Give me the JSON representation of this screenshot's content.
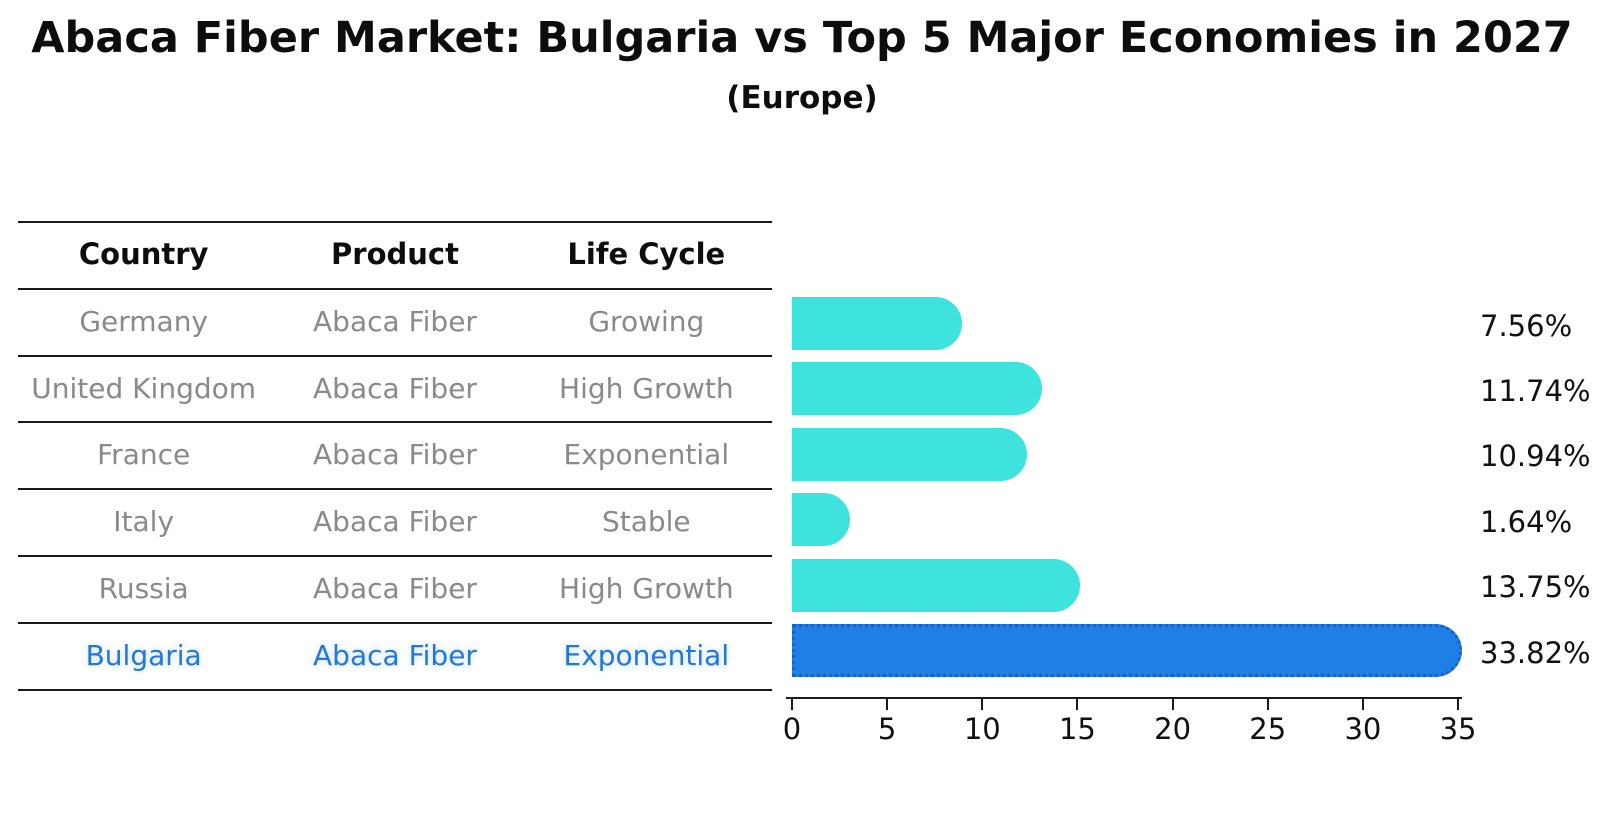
{
  "title": "Abaca Fiber Market: Bulgaria vs Top 5 Major Economies in 2027",
  "subtitle": "(Europe)",
  "table": {
    "headers": [
      "Country",
      "Product",
      "Life Cycle"
    ],
    "rows": [
      {
        "country": "Germany",
        "product": "Abaca Fiber",
        "life_cycle": "Growing",
        "highlight": false
      },
      {
        "country": "United Kingdom",
        "product": "Abaca Fiber",
        "life_cycle": "High Growth",
        "highlight": false
      },
      {
        "country": "France",
        "product": "Abaca Fiber",
        "life_cycle": "Exponential",
        "highlight": false
      },
      {
        "country": "Italy",
        "product": "Abaca Fiber",
        "life_cycle": "Stable",
        "highlight": false
      },
      {
        "country": "Russia",
        "product": "Abaca Fiber",
        "life_cycle": "High Growth",
        "highlight": false
      },
      {
        "country": "Bulgaria",
        "product": "Abaca Fiber",
        "life_cycle": "Exponential",
        "highlight": true
      }
    ]
  },
  "chart_data": {
    "type": "bar",
    "orientation": "horizontal",
    "categories": [
      "Germany",
      "United Kingdom",
      "France",
      "Italy",
      "Russia",
      "Bulgaria"
    ],
    "values": [
      7.56,
      11.74,
      10.94,
      1.64,
      13.75,
      33.82
    ],
    "labels": [
      "7.56%",
      "11.74%",
      "10.94%",
      "1.64%",
      "13.75%",
      "33.82%"
    ],
    "xlim": [
      0,
      35
    ],
    "x_ticks": [
      0,
      5,
      10,
      15,
      20,
      25,
      30,
      35
    ],
    "grid": false,
    "legend": "none",
    "highlight_index": 5,
    "title": "Abaca Fiber Market: Bulgaria vs Top 5 Major Economies in 2027",
    "subtitle": "(Europe)"
  },
  "colors": {
    "bar_default": "#3fe3dd",
    "bar_highlight": "#1f7fe6",
    "bar_highlight_edge": "#1b5ec6",
    "table_text": "#8a8a8a",
    "highlight_text": "#2677d2",
    "text": "#0d0d0d"
  }
}
